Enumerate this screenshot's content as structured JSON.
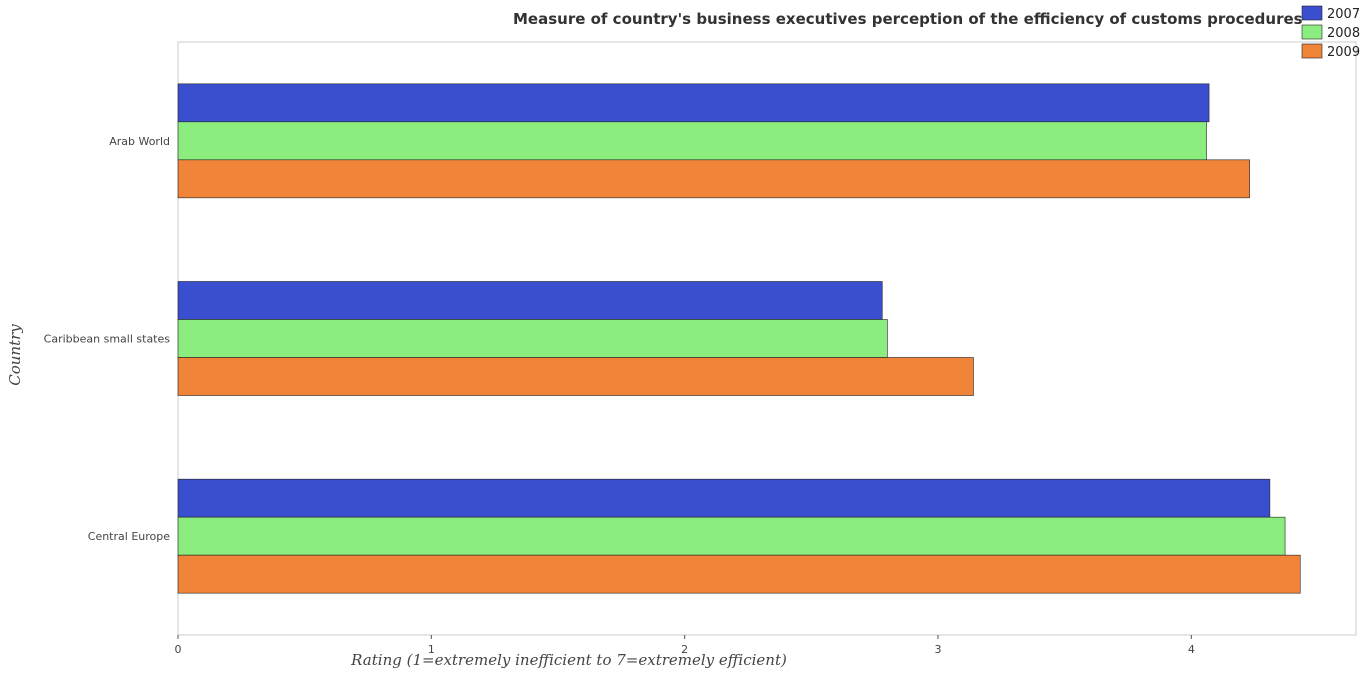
{
  "chart_data": {
    "type": "bar",
    "orientation": "horizontal",
    "title": "Measure of country's business executives perception of the efficiency of customs procedures",
    "xlabel": "Rating (1=extremely inefficient to 7=extremely efficient)",
    "ylabel": "Country",
    "xlim": [
      0,
      4.65
    ],
    "xticks": [
      0,
      1,
      2,
      3,
      4
    ],
    "xtick_labels": [
      "0",
      "1",
      "2",
      "3",
      "4"
    ],
    "categories": [
      "Arab World",
      "Caribbean small states",
      "Central Europe"
    ],
    "series": [
      {
        "name": "2007",
        "color": "#3a4fcf",
        "values": [
          4.07,
          2.78,
          4.31
        ]
      },
      {
        "name": "2008",
        "color": "#8ced7f",
        "values": [
          4.06,
          2.8,
          4.37
        ]
      },
      {
        "name": "2009",
        "color": "#f0853a",
        "values": [
          4.23,
          3.14,
          4.43
        ]
      }
    ],
    "grid": false,
    "legend_position": "top-right"
  }
}
